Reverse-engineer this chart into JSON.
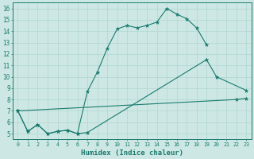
{
  "xlabel": "Humidex (Indice chaleur)",
  "bg_color": "#cde8e4",
  "line_color": "#1a7a6e",
  "grid_color": "#b0d5d0",
  "xlim": [
    -0.5,
    23.5
  ],
  "ylim": [
    4.5,
    16.5
  ],
  "xticks": [
    0,
    1,
    2,
    3,
    4,
    5,
    6,
    7,
    8,
    9,
    10,
    11,
    12,
    13,
    14,
    15,
    16,
    17,
    18,
    19,
    20,
    21,
    22,
    23
  ],
  "yticks": [
    5,
    6,
    7,
    8,
    9,
    10,
    11,
    12,
    13,
    14,
    15,
    16
  ],
  "line1_x": [
    0,
    1,
    2,
    3,
    4,
    5,
    6,
    7,
    8,
    9,
    10,
    11,
    12,
    13,
    14,
    15,
    16,
    17,
    18,
    19
  ],
  "line1_y": [
    7.0,
    5.2,
    5.8,
    5.0,
    5.2,
    5.3,
    5.0,
    8.7,
    10.4,
    12.5,
    14.2,
    14.5,
    14.3,
    14.5,
    14.8,
    16.0,
    15.5,
    15.1,
    14.3,
    12.8
  ],
  "line2_x": [
    0,
    1,
    2,
    3,
    4,
    5,
    6,
    7,
    19,
    20,
    23
  ],
  "line2_y": [
    7.0,
    5.2,
    5.8,
    5.0,
    5.2,
    5.3,
    5.0,
    5.1,
    11.5,
    10.0,
    8.8
  ],
  "line3_x": [
    0,
    22,
    23
  ],
  "line3_y": [
    7.0,
    8.0,
    8.1
  ]
}
